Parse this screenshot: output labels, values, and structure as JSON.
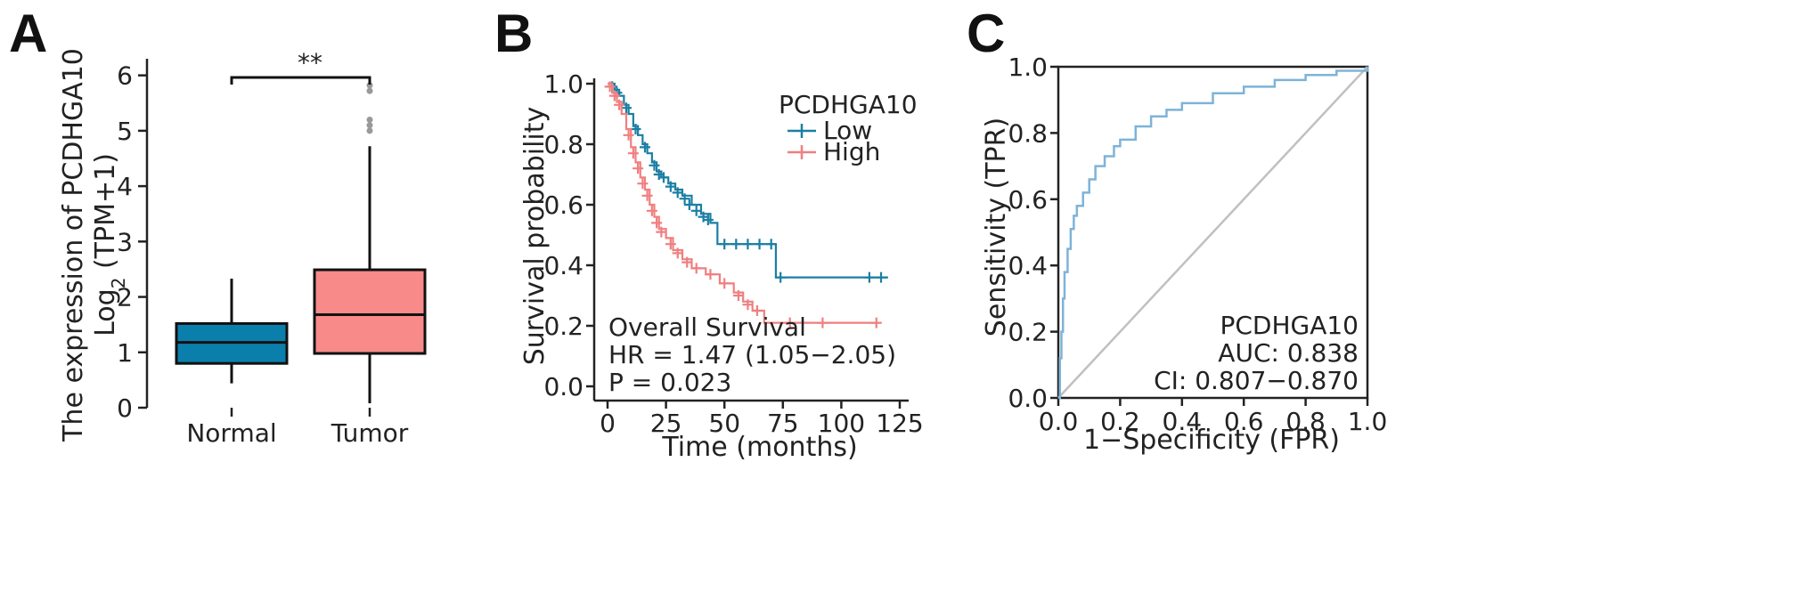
{
  "chart_data": [
    {
      "panel": "A",
      "type": "box",
      "ylabel_line1": "The expression of PCDHGA10",
      "ylabel_line2_prefix": "Log",
      "ylabel_line2_sub": "2",
      "ylabel_line2_suffix": " (TPM+1)",
      "ylim": [
        0,
        6.3
      ],
      "yticks": [
        0,
        1,
        2,
        3,
        4,
        5,
        6
      ],
      "categories": [
        "Normal",
        "Tumor"
      ],
      "boxes": [
        {
          "name": "Normal",
          "q1": 0.8,
          "median": 1.18,
          "q3": 1.52,
          "whisker_low": 0.44,
          "whisker_high": 2.33,
          "outliers": [],
          "color": "#0b7fab"
        },
        {
          "name": "Tumor",
          "q1": 0.98,
          "median": 1.68,
          "q3": 2.49,
          "whisker_low": 0.08,
          "whisker_high": 4.72,
          "outliers": [
            5.0,
            5.1,
            5.2,
            5.72,
            5.82
          ],
          "color": "#f88a8a"
        }
      ],
      "significance": "**"
    },
    {
      "panel": "B",
      "type": "line",
      "subtype": "kaplan-meier",
      "xlabel": "Time (months)",
      "ylabel": "Survival probability",
      "xlim": [
        0,
        125
      ],
      "ylim": [
        0,
        1
      ],
      "xticks": [
        0,
        25,
        50,
        75,
        100,
        125
      ],
      "yticks": [
        0.0,
        0.2,
        0.4,
        0.6,
        0.8,
        1.0
      ],
      "ytick_labels": [
        "0.0",
        "0.2",
        "0.4",
        "0.6",
        "0.8",
        "1.0"
      ],
      "legend_title": "PCDHGA10",
      "series": [
        {
          "name": "Low",
          "color": "#1a7fa3",
          "steps": [
            [
              0,
              1.0
            ],
            [
              3,
              0.98
            ],
            [
              5,
              0.96
            ],
            [
              7,
              0.93
            ],
            [
              9,
              0.9
            ],
            [
              11,
              0.86
            ],
            [
              13,
              0.83
            ],
            [
              15,
              0.8
            ],
            [
              17,
              0.77
            ],
            [
              19,
              0.74
            ],
            [
              21,
              0.71
            ],
            [
              23,
              0.69
            ],
            [
              26,
              0.67
            ],
            [
              29,
              0.65
            ],
            [
              32,
              0.63
            ],
            [
              36,
              0.6
            ],
            [
              40,
              0.57
            ],
            [
              44,
              0.54
            ],
            [
              47,
              0.47
            ],
            [
              72,
              0.36
            ],
            [
              120,
              0.36
            ]
          ],
          "censors": [
            [
              2,
              0.99
            ],
            [
              4,
              0.97
            ],
            [
              8,
              0.92
            ],
            [
              12,
              0.85
            ],
            [
              16,
              0.79
            ],
            [
              20,
              0.73
            ],
            [
              22,
              0.7
            ],
            [
              24,
              0.69
            ],
            [
              27,
              0.66
            ],
            [
              30,
              0.64
            ],
            [
              33,
              0.62
            ],
            [
              35,
              0.6
            ],
            [
              38,
              0.58
            ],
            [
              41,
              0.56
            ],
            [
              43,
              0.55
            ],
            [
              50,
              0.47
            ],
            [
              55,
              0.47
            ],
            [
              60,
              0.47
            ],
            [
              65,
              0.47
            ],
            [
              70,
              0.47
            ],
            [
              74,
              0.36
            ],
            [
              112,
              0.36
            ],
            [
              117,
              0.36
            ]
          ]
        },
        {
          "name": "High",
          "color": "#f07f7f",
          "steps": [
            [
              0,
              1.0
            ],
            [
              2,
              0.97
            ],
            [
              4,
              0.94
            ],
            [
              6,
              0.9
            ],
            [
              8,
              0.85
            ],
            [
              10,
              0.79
            ],
            [
              12,
              0.74
            ],
            [
              14,
              0.69
            ],
            [
              16,
              0.65
            ],
            [
              18,
              0.6
            ],
            [
              20,
              0.56
            ],
            [
              22,
              0.52
            ],
            [
              25,
              0.49
            ],
            [
              28,
              0.45
            ],
            [
              32,
              0.42
            ],
            [
              36,
              0.39
            ],
            [
              42,
              0.37
            ],
            [
              48,
              0.34
            ],
            [
              54,
              0.31
            ],
            [
              58,
              0.28
            ],
            [
              62,
              0.25
            ],
            [
              67,
              0.21
            ],
            [
              116,
              0.21
            ]
          ],
          "censors": [
            [
              1,
              0.99
            ],
            [
              3,
              0.96
            ],
            [
              5,
              0.93
            ],
            [
              9,
              0.83
            ],
            [
              11,
              0.77
            ],
            [
              13,
              0.72
            ],
            [
              15,
              0.67
            ],
            [
              17,
              0.63
            ],
            [
              19,
              0.58
            ],
            [
              21,
              0.54
            ],
            [
              23,
              0.51
            ],
            [
              27,
              0.47
            ],
            [
              30,
              0.44
            ],
            [
              34,
              0.41
            ],
            [
              38,
              0.39
            ],
            [
              44,
              0.37
            ],
            [
              50,
              0.34
            ],
            [
              56,
              0.3
            ],
            [
              60,
              0.27
            ],
            [
              64,
              0.25
            ],
            [
              78,
              0.21
            ],
            [
              92,
              0.21
            ],
            [
              115,
              0.21
            ]
          ]
        }
      ],
      "annotations": [
        "Overall Survival",
        "HR = 1.47 (1.05−2.05)",
        "P = 0.023"
      ]
    },
    {
      "panel": "C",
      "type": "line",
      "subtype": "roc",
      "xlabel": "1−Specificity (FPR)",
      "ylabel": "Sensitivity (TPR)",
      "xlim": [
        0,
        1
      ],
      "ylim": [
        0,
        1
      ],
      "xticks": [
        0.0,
        0.2,
        0.4,
        0.6,
        0.8,
        1.0
      ],
      "yticks": [
        0.0,
        0.2,
        0.4,
        0.6,
        0.8,
        1.0
      ],
      "tick_labels": [
        "0.0",
        "0.2",
        "0.4",
        "0.6",
        "0.8",
        "1.0"
      ],
      "series": [
        {
          "name": "ROC",
          "color": "#7eb3d8",
          "x": [
            0.0,
            0.005,
            0.01,
            0.015,
            0.02,
            0.03,
            0.04,
            0.05,
            0.06,
            0.08,
            0.1,
            0.12,
            0.15,
            0.18,
            0.2,
            0.25,
            0.3,
            0.35,
            0.4,
            0.5,
            0.6,
            0.7,
            0.8,
            0.9,
            1.0
          ],
          "y": [
            0.0,
            0.12,
            0.2,
            0.3,
            0.38,
            0.45,
            0.51,
            0.55,
            0.58,
            0.62,
            0.66,
            0.7,
            0.73,
            0.76,
            0.78,
            0.82,
            0.85,
            0.87,
            0.89,
            0.92,
            0.94,
            0.96,
            0.975,
            0.988,
            1.0
          ]
        },
        {
          "name": "diagonal",
          "color": "#c0c0c0",
          "x": [
            0,
            1
          ],
          "y": [
            0,
            1
          ]
        }
      ],
      "annotations": [
        "PCDHGA10",
        "AUC: 0.838",
        "CI: 0.807−0.870"
      ]
    }
  ],
  "panels": {
    "a": "A",
    "b": "B",
    "c": "C"
  }
}
